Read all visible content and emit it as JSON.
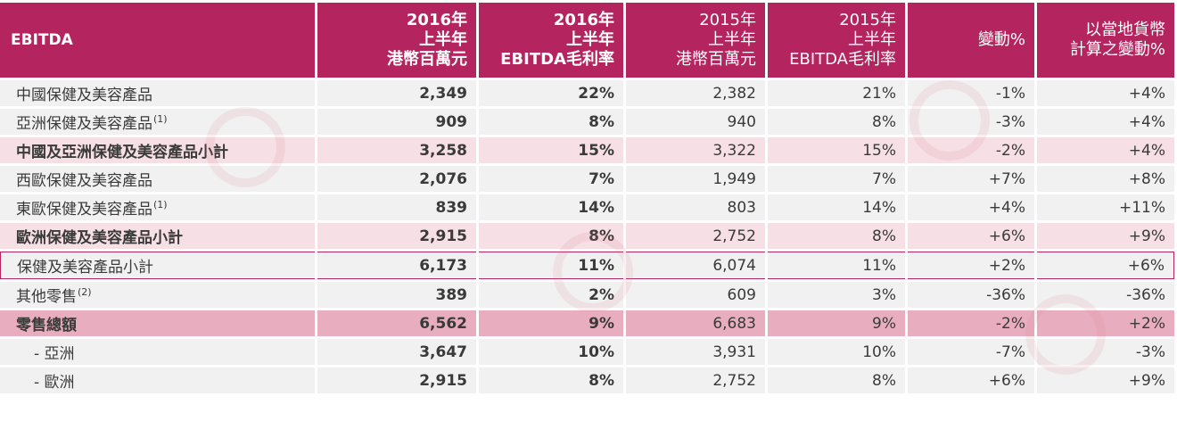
{
  "header": {
    "label": "EBITDA",
    "columns": [
      [
        "2016年",
        "上半年",
        "港幣百萬元"
      ],
      [
        "2016年",
        "上半年",
        "EBITDA毛利率"
      ],
      [
        "2015年",
        "上半年",
        "港幣百萬元"
      ],
      [
        "2015年",
        "上半年",
        "EBITDA毛利率"
      ],
      [
        "變動%"
      ],
      [
        "以當地貨幣",
        "計算之變動%"
      ]
    ]
  },
  "rows": [
    {
      "label": "中國保健及美容產品",
      "note": "",
      "values": [
        "2,349",
        "22%",
        "2,382",
        "21%",
        "-1%",
        "+4%"
      ],
      "style": "normal"
    },
    {
      "label": "亞洲保健及美容產品",
      "note": "(1)",
      "values": [
        "909",
        "8%",
        "940",
        "8%",
        "-3%",
        "+4%"
      ],
      "style": "normal"
    },
    {
      "label": "中國及亞洲保健及美容產品小計",
      "note": "",
      "values": [
        "3,258",
        "15%",
        "3,322",
        "15%",
        "-2%",
        "+4%"
      ],
      "style": "sub"
    },
    {
      "label": "西歐保健及美容產品",
      "note": "",
      "values": [
        "2,076",
        "7%",
        "1,949",
        "7%",
        "+7%",
        "+8%"
      ],
      "style": "normal"
    },
    {
      "label": "東歐保健及美容產品",
      "note": "(1)",
      "values": [
        "839",
        "14%",
        "803",
        "14%",
        "+4%",
        "+11%"
      ],
      "style": "normal"
    },
    {
      "label": "歐洲保健及美容產品小計",
      "note": "",
      "values": [
        "2,915",
        "8%",
        "2,752",
        "8%",
        "+6%",
        "+9%"
      ],
      "style": "sub"
    },
    {
      "label": "保健及美容產品小計",
      "note": "",
      "values": [
        "6,173",
        "11%",
        "6,074",
        "11%",
        "+2%",
        "+6%"
      ],
      "style": "outlined"
    },
    {
      "label": "其他零售",
      "note": "(2)",
      "values": [
        "389",
        "2%",
        "609",
        "3%",
        "-36%",
        "-36%"
      ],
      "style": "normal"
    },
    {
      "label": "零售總額",
      "note": "",
      "values": [
        "6,562",
        "9%",
        "6,683",
        "9%",
        "-2%",
        "+2%"
      ],
      "style": "total"
    },
    {
      "label": "- 亞洲",
      "note": "",
      "values": [
        "3,647",
        "10%",
        "3,931",
        "10%",
        "-7%",
        "-3%"
      ],
      "style": "indent"
    },
    {
      "label": "- 歐洲",
      "note": "",
      "values": [
        "2,915",
        "8%",
        "2,752",
        "8%",
        "+6%",
        "+9%"
      ],
      "style": "indent"
    }
  ],
  "colors": {
    "header_bg": "#b4245e",
    "subtotal_bg": "#f6dfe5",
    "total_bg": "#e8aebf",
    "row_bg": "#f1f1f1"
  }
}
